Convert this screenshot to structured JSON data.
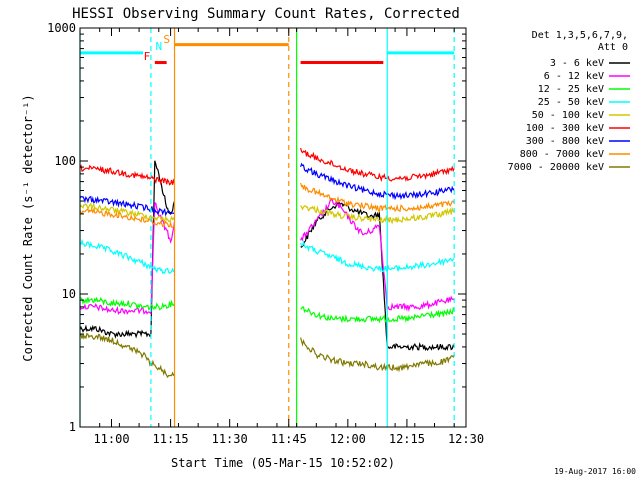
{
  "chart_data": {
    "type": "line",
    "title": "HESSI Observing Summary Count Rates, Corrected",
    "xlabel": "Start Time (05-Mar-15 10:52:02)",
    "ylabel": "Corrected Count Rate (s⁻¹ detector⁻¹)",
    "yscale": "log",
    "ylim": [
      1,
      1000
    ],
    "xlim": [
      "10:52",
      "12:30"
    ],
    "xticks": [
      "11:00",
      "11:15",
      "11:30",
      "11:45",
      "12:00",
      "12:15",
      "12:30"
    ],
    "yticks": [
      "1",
      "10",
      "100",
      "1000"
    ],
    "date_stamp": "19-Aug-2017 16:00",
    "legend": {
      "placement": "right",
      "header": [
        "Det 1,3,5,6,7,9,",
        "Att 0"
      ],
      "entries": [
        {
          "label": "3 - 6 keV",
          "color": "#000000"
        },
        {
          "label": "6 - 12 keV",
          "color": "#ff00ff"
        },
        {
          "label": "12 - 25 keV",
          "color": "#00ff00"
        },
        {
          "label": "25 - 50 keV",
          "color": "#00ffff"
        },
        {
          "label": "50 - 100 keV",
          "color": "#d2c800"
        },
        {
          "label": "100 - 300 keV",
          "color": "#ff0000"
        },
        {
          "label": "300 - 800 keV",
          "color": "#0000ff"
        },
        {
          "label": "800 - 7000 keV",
          "color": "#ff8c00"
        },
        {
          "label": "7000 - 20000 keV",
          "color": "#807a00"
        }
      ]
    },
    "flags": [
      {
        "label": "F",
        "color": "#ff0000"
      },
      {
        "label": "N",
        "color": "#00ffff"
      },
      {
        "label": "S",
        "color": "#ff8c00"
      }
    ],
    "series": [
      {
        "name": "3 - 6 keV",
        "color": "#000000",
        "x": [
          "10:52",
          "10:56",
          "11:00",
          "11:04",
          "11:08",
          "11:10",
          "11:11",
          "11:12",
          "11:13",
          "11:14",
          "11:15",
          "11:16",
          "11:48",
          "11:50",
          "11:52",
          "11:54",
          "11:56",
          "11:58",
          "12:00",
          "12:02",
          "12:04",
          "12:06",
          "12:08",
          "12:10",
          "12:14",
          "12:18",
          "12:22",
          "12:26",
          "12:27"
        ],
        "y": [
          5.5,
          5.5,
          5,
          5,
          5,
          5,
          100,
          80,
          60,
          45,
          40,
          50,
          22,
          28,
          35,
          40,
          45,
          48,
          45,
          42,
          40,
          38,
          40,
          4,
          4,
          4,
          4,
          4,
          4
        ]
      },
      {
        "name": "6 - 12 keV",
        "color": "#ff00ff",
        "x": [
          "10:52",
          "10:56",
          "11:00",
          "11:04",
          "11:08",
          "11:10",
          "11:11",
          "11:12",
          "11:14",
          "11:15",
          "11:16",
          "11:48",
          "11:50",
          "11:52",
          "11:54",
          "11:56",
          "11:58",
          "12:00",
          "12:02",
          "12:04",
          "12:06",
          "12:08",
          "12:10",
          "12:14",
          "12:18",
          "12:22",
          "12:26",
          "12:27"
        ],
        "y": [
          8,
          8,
          7.5,
          7.5,
          7.5,
          7.5,
          50,
          40,
          30,
          25,
          35,
          25,
          30,
          35,
          42,
          50,
          45,
          38,
          32,
          28,
          30,
          33,
          8,
          8,
          8,
          8.5,
          9,
          9
        ]
      },
      {
        "name": "12 - 25 keV",
        "color": "#00ff00",
        "x": [
          "10:52",
          "10:56",
          "11:00",
          "11:04",
          "11:08",
          "11:12",
          "11:16",
          "11:48",
          "11:52",
          "11:56",
          "12:00",
          "12:04",
          "12:08",
          "12:12",
          "12:16",
          "12:20",
          "12:24",
          "12:27"
        ],
        "y": [
          9,
          9,
          8.5,
          8.5,
          8,
          8,
          8.5,
          8,
          7,
          6.5,
          6.5,
          6.5,
          6.5,
          6.5,
          6.5,
          7,
          7,
          7.5
        ]
      },
      {
        "name": "25 - 50 keV",
        "color": "#00ffff",
        "x": [
          "10:52",
          "10:56",
          "11:00",
          "11:04",
          "11:08",
          "11:12",
          "11:16",
          "11:48",
          "11:52",
          "11:56",
          "12:00",
          "12:04",
          "12:08",
          "12:12",
          "12:16",
          "12:20",
          "12:24",
          "12:27"
        ],
        "y": [
          24,
          23,
          21,
          19,
          17,
          15,
          15,
          24,
          21,
          19,
          17,
          16,
          15.5,
          15.5,
          16,
          16.5,
          17.5,
          18.5
        ]
      },
      {
        "name": "50 - 100 keV",
        "color": "#d2c800",
        "x": [
          "10:52",
          "10:56",
          "11:00",
          "11:04",
          "11:08",
          "11:12",
          "11:16",
          "11:48",
          "11:52",
          "11:56",
          "12:00",
          "12:04",
          "12:08",
          "12:12",
          "12:16",
          "12:20",
          "12:24",
          "12:27"
        ],
        "y": [
          46,
          45,
          43,
          41,
          39,
          37,
          36,
          46,
          43,
          40,
          38,
          37,
          36,
          36,
          37,
          38,
          40,
          42
        ]
      },
      {
        "name": "100 - 300 keV",
        "color": "#ff0000",
        "x": [
          "10:52",
          "10:56",
          "11:00",
          "11:04",
          "11:08",
          "11:12",
          "11:16",
          "11:48",
          "11:52",
          "11:56",
          "12:00",
          "12:04",
          "12:08",
          "12:12",
          "12:16",
          "12:20",
          "12:24",
          "12:27"
        ],
        "y": [
          88,
          87,
          84,
          80,
          76,
          72,
          68,
          120,
          105,
          95,
          86,
          80,
          76,
          74,
          75,
          78,
          83,
          88
        ]
      },
      {
        "name": "300 - 800 keV",
        "color": "#0000ff",
        "x": [
          "10:52",
          "10:56",
          "11:00",
          "11:04",
          "11:08",
          "11:12",
          "11:16",
          "11:48",
          "11:52",
          "11:56",
          "12:00",
          "12:04",
          "12:08",
          "12:12",
          "12:16",
          "12:20",
          "12:24",
          "12:27"
        ],
        "y": [
          52,
          51,
          49,
          47,
          45,
          42,
          41,
          92,
          80,
          72,
          65,
          60,
          57,
          55,
          55,
          57,
          59,
          62
        ]
      },
      {
        "name": "800 - 7000 keV",
        "color": "#ff8c00",
        "x": [
          "10:52",
          "10:56",
          "11:00",
          "11:04",
          "11:08",
          "11:12",
          "11:16",
          "11:48",
          "11:52",
          "11:56",
          "12:00",
          "12:04",
          "12:08",
          "12:12",
          "12:16",
          "12:20",
          "12:24",
          "12:27"
        ],
        "y": [
          42,
          41,
          40,
          38,
          36,
          34,
          33,
          65,
          58,
          52,
          48,
          46,
          44,
          44,
          44,
          45,
          47,
          48
        ]
      },
      {
        "name": "7000 - 20000 keV",
        "color": "#807a00",
        "x": [
          "10:52",
          "10:56",
          "11:00",
          "11:04",
          "11:08",
          "11:10",
          "11:12",
          "11:14",
          "11:16",
          "11:48",
          "11:50",
          "11:52",
          "11:56",
          "12:00",
          "12:04",
          "12:08",
          "12:10",
          "12:14",
          "12:18",
          "12:22",
          "12:26",
          "12:27"
        ],
        "y": [
          4.8,
          4.8,
          4.5,
          4,
          3.5,
          3,
          2.8,
          2.5,
          2.5,
          4.5,
          4,
          3.5,
          3.2,
          3,
          3,
          2.8,
          2.8,
          2.8,
          3,
          3,
          3.2,
          3.5
        ]
      }
    ],
    "orbit_markers": [
      {
        "time": "10:52",
        "y": 650,
        "color": "#00ffff",
        "style": "solid"
      },
      {
        "time": "11:10",
        "style": "dashed",
        "color": "#00ffff"
      },
      {
        "time": "11:16",
        "style": "solid",
        "color": "#ff8c00"
      },
      {
        "time": "11:45",
        "style": "dashed",
        "color": "#ff8c00"
      },
      {
        "time": "11:47",
        "style": "solid",
        "color": "#00ff00"
      },
      {
        "time": "12:10",
        "style": "solid",
        "color": "#00ffff"
      },
      {
        "time": "12:27",
        "style": "dashed",
        "color": "#00ffff"
      }
    ],
    "flag_bars": [
      {
        "label": "N",
        "color": "#00ffff",
        "start": "10:52",
        "end": "11:08",
        "y": 650
      },
      {
        "label": "F",
        "color": "#ff0000",
        "start": "11:11",
        "end": "11:14",
        "y": 550
      },
      {
        "label": "S",
        "color": "#ff8c00",
        "start": "11:16",
        "end": "11:45",
        "y": 750
      },
      {
        "label": "F",
        "color": "#ff0000",
        "start": "11:48",
        "end": "12:09",
        "y": 550
      },
      {
        "label": "N",
        "color": "#00ffff",
        "start": "12:10",
        "end": "12:27",
        "y": 650
      }
    ]
  }
}
